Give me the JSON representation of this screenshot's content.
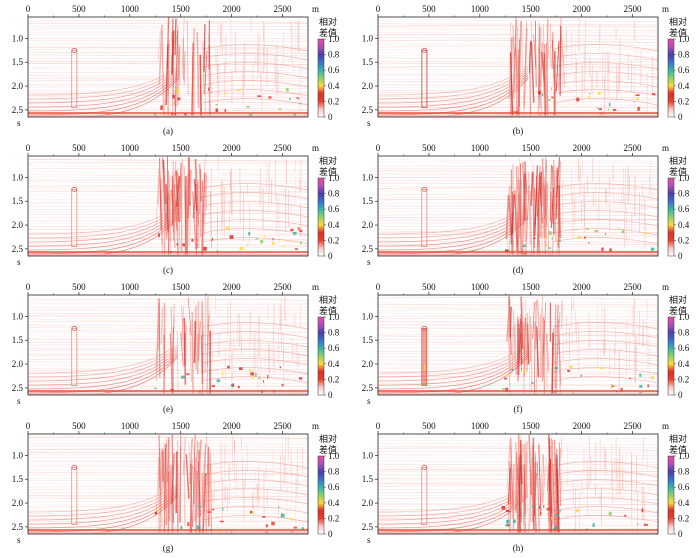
{
  "figure": {
    "x_axis": {
      "ticks": [
        0,
        500,
        1000,
        1500,
        2000,
        2500
      ],
      "unit": "m",
      "max": 2750
    },
    "y_axis": {
      "ticks": [
        "1.0",
        "1.5",
        "2.0",
        "2.5"
      ],
      "tick_values": [
        1.0,
        1.5,
        2.0,
        2.5
      ],
      "unit": "s",
      "min": 0.55,
      "max": 2.65
    },
    "colorbar": {
      "title_line1": "相对",
      "title_line2": "差值",
      "ticks": [
        "1.0",
        "0.8",
        "0.6",
        "0.4",
        "0.2",
        "0"
      ],
      "range": [
        0,
        1.0
      ],
      "colors": [
        "#ffffff",
        "#f6c8c4",
        "#e8412e",
        "#d9302a",
        "#ffd93a",
        "#8fd06c",
        "#36b6a6",
        "#3d6fd1",
        "#4b3fa8",
        "#b44fb5",
        "#e84fa8"
      ]
    },
    "panels": [
      {
        "label": "(a)"
      },
      {
        "label": "(b)"
      },
      {
        "label": "(c)"
      },
      {
        "label": "(d)"
      },
      {
        "label": "(e)"
      },
      {
        "label": "(f)"
      },
      {
        "label": "(g)"
      },
      {
        "label": "(h)"
      }
    ]
  }
}
